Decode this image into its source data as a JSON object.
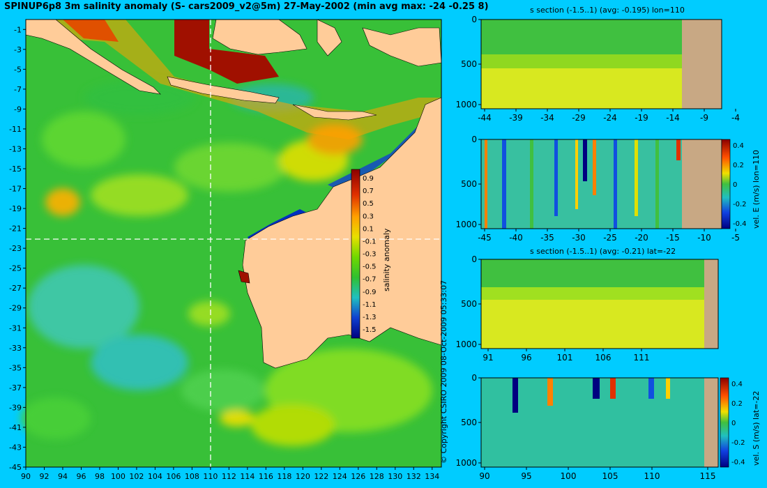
{
  "title": "SPINUP6p8 3m salinity anomaly (S- cars2009_v2@5m) 27-May-2002 (min avg max: -24 -0.25 8)",
  "copyright": "© Copyright CSIRO 2009   08-Oct-2009 05:33:07",
  "colors": {
    "background": "#00ccff",
    "land": "#ffcc99",
    "section_land": "#c8a884"
  },
  "map": {
    "xticks": [
      90,
      92,
      94,
      96,
      98,
      100,
      102,
      104,
      106,
      108,
      110,
      112,
      114,
      116,
      118,
      120,
      122,
      124,
      126,
      128,
      130,
      132,
      134
    ],
    "yticks": [
      -1,
      -3,
      -5,
      -7,
      -9,
      -11,
      -13,
      -15,
      -17,
      -19,
      -21,
      -23,
      -25,
      -27,
      -29,
      -31,
      -33,
      -35,
      -37,
      -39,
      -41,
      -43,
      -45
    ],
    "xlim": [
      90,
      135
    ],
    "ylim": [
      -45,
      0
    ],
    "section_lon": 110,
    "section_lat": -22,
    "colorbar": {
      "label": "salinity anomaly",
      "ticks": [
        "0.9",
        "0.7",
        "0.5",
        "0.3",
        "0.1",
        "-0.1",
        "-0.3",
        "-0.5",
        "-0.7",
        "-0.9",
        "-1.1",
        "-1.3",
        "-1.5"
      ]
    }
  },
  "chart_data": [
    {
      "type": "heatmap",
      "title": "s section (-1.5..1) (avg: -0.195) lon=110",
      "xticks": [
        "-44",
        "-39",
        "-34",
        "-29",
        "-24",
        "-19",
        "-14",
        "-9",
        "-4"
      ],
      "yticks": [
        "0",
        "500",
        "1000"
      ],
      "colorbar_label": "",
      "colorbar_ticks": []
    },
    {
      "type": "heatmap",
      "title": "",
      "xticks": [
        "-45",
        "-40",
        "-35",
        "-30",
        "-25",
        "-20",
        "-15",
        "-10",
        "-5"
      ],
      "yticks": [
        "0",
        "500",
        "1000"
      ],
      "colorbar_label": "vel. E (m/s) lon=110",
      "colorbar_ticks": [
        "0.4",
        "0.2",
        "0",
        "-0.2",
        "-0.4"
      ]
    },
    {
      "type": "heatmap",
      "title": "s section (-1.5..1) (avg: -0.21) lat=-22",
      "xticks": [
        "91",
        "96",
        "101",
        "106",
        "111"
      ],
      "yticks": [
        "0",
        "500",
        "1000"
      ],
      "colorbar_label": "",
      "colorbar_ticks": []
    },
    {
      "type": "heatmap",
      "title": "",
      "xticks": [
        "90",
        "95",
        "100",
        "105",
        "110",
        "115"
      ],
      "yticks": [
        "0",
        "500",
        "1000"
      ],
      "colorbar_label": "vel. S (m/s) lat=-22",
      "colorbar_ticks": [
        "0.4",
        "0.2",
        "0",
        "-0.2",
        "-0.4"
      ]
    }
  ]
}
